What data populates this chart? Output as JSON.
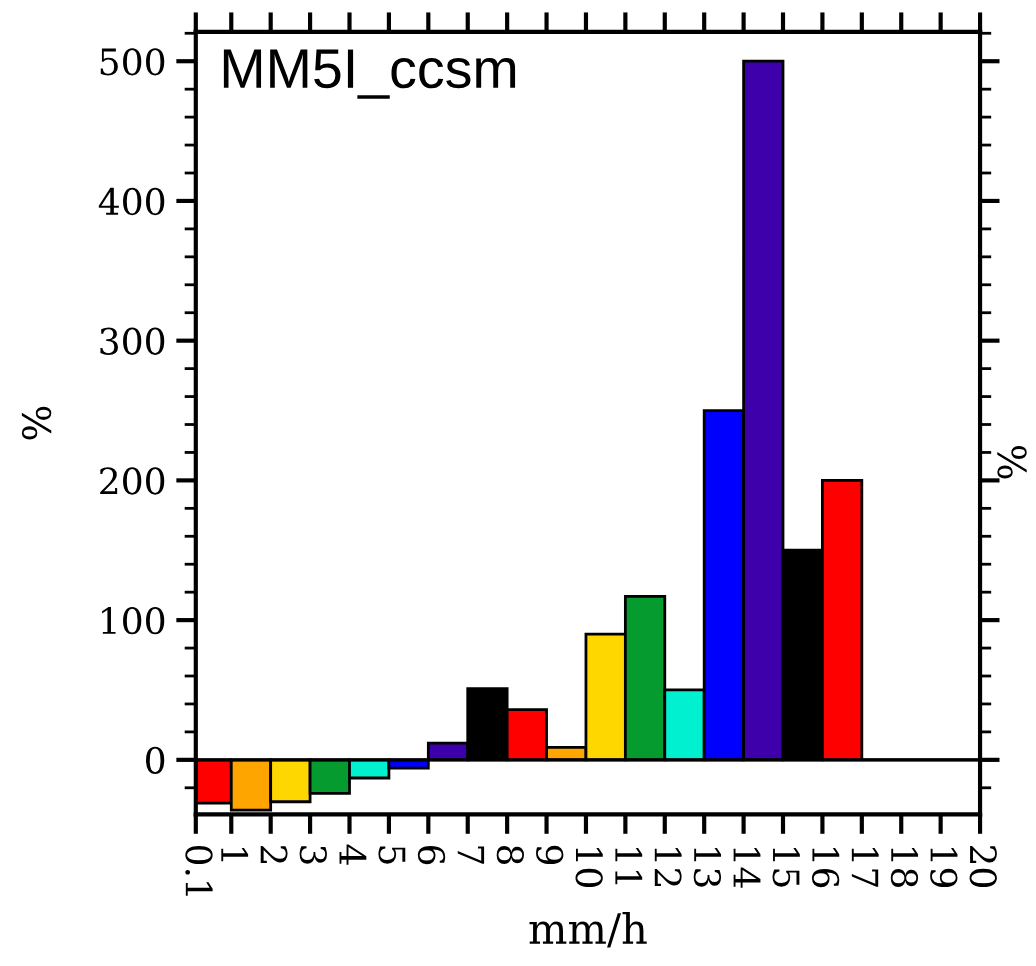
{
  "chart_data": {
    "type": "histogram",
    "title": "MM5I_ccsm",
    "xlabel": "mm/h",
    "ylabel": "%",
    "y2label": "%",
    "bins": [
      0.1,
      1,
      2,
      3,
      4,
      5,
      6,
      7,
      8,
      9,
      10,
      11,
      12,
      13,
      14,
      15,
      16,
      17,
      18,
      19,
      20
    ],
    "values": [
      -31,
      -36,
      -30,
      -24,
      -13,
      -6,
      12,
      51,
      36,
      9,
      90,
      117,
      50,
      250,
      500,
      150,
      200,
      0,
      0,
      0
    ],
    "colors": [
      "#ff0000",
      "#ffa500",
      "#ffd700",
      "#069b2f",
      "#00f0d0",
      "#0000ff",
      "#3d00aa",
      "#000000",
      "#ff0000",
      "#ffa500",
      "#ffd700",
      "#069b2f",
      "#00f0d0",
      "#0000ff",
      "#3d00aa",
      "#000000",
      "#ff0000",
      "#000000",
      "#000000",
      "#000000"
    ],
    "xlim": [
      0.1,
      20
    ],
    "xticks": [
      0.1,
      1,
      2,
      3,
      4,
      5,
      6,
      7,
      8,
      9,
      10,
      11,
      12,
      13,
      14,
      15,
      16,
      17,
      18,
      19,
      20
    ],
    "ylim": [
      -39,
      521
    ],
    "yticks": [
      0,
      100,
      200,
      300,
      400,
      500
    ],
    "ref_lines": [
      {
        "axis": "y",
        "value": 0,
        "color": "#000000"
      }
    ],
    "grid": false,
    "legend": false
  }
}
